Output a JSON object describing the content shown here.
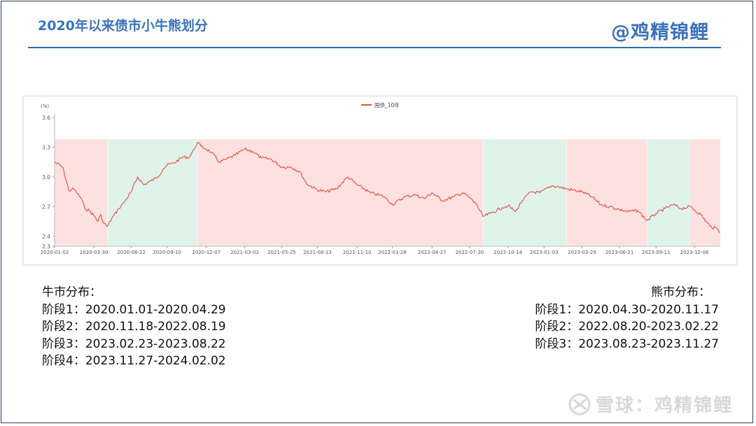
{
  "header": {
    "title": "2020年以来债市小牛熊划分",
    "brand": "@鸡精锦鲤"
  },
  "chart_data": {
    "type": "line",
    "legend": "国债_10年",
    "unit_label": "(%)",
    "y_ticks": [
      "3.6",
      "3.3",
      "3.0",
      "2.7",
      "2.4",
      "2.3"
    ],
    "ylim": [
      2.3,
      3.6
    ],
    "x_range": [
      "2020-01-02",
      "2024-02-02"
    ],
    "x_ticks": [
      "2020-01-02",
      "2020-03-30",
      "2020-06-22",
      "2020-09-10",
      "2020-12-07",
      "2021-03-03",
      "2021-05-25",
      "2021-08-13",
      "2021-11-10",
      "2022-01-28",
      "2022-04-27",
      "2022-07-20",
      "2022-10-14",
      "2023-01-03",
      "2023-03-29",
      "2023-06-21",
      "2023-09-11",
      "2023-12-06"
    ],
    "band_top": 3.38,
    "bands": [
      {
        "start": "2020-01-02",
        "end": "2020-04-29",
        "kind": "bull"
      },
      {
        "start": "2020-04-30",
        "end": "2020-11-17",
        "kind": "bear"
      },
      {
        "start": "2020-11-18",
        "end": "2022-08-19",
        "kind": "bull"
      },
      {
        "start": "2022-08-20",
        "end": "2023-02-22",
        "kind": "bear"
      },
      {
        "start": "2023-02-23",
        "end": "2023-08-22",
        "kind": "bull"
      },
      {
        "start": "2023-08-23",
        "end": "2023-11-27",
        "kind": "bear"
      },
      {
        "start": "2023-11-27",
        "end": "2024-02-02",
        "kind": "bull"
      }
    ],
    "series": [
      {
        "name": "国债_10年",
        "points": [
          [
            "2020-01-02",
            3.15
          ],
          [
            "2020-01-20",
            3.1
          ],
          [
            "2020-02-03",
            2.86
          ],
          [
            "2020-02-14",
            2.88
          ],
          [
            "2020-03-02",
            2.78
          ],
          [
            "2020-03-10",
            2.68
          ],
          [
            "2020-03-20",
            2.66
          ],
          [
            "2020-04-01",
            2.6
          ],
          [
            "2020-04-08",
            2.55
          ],
          [
            "2020-04-15",
            2.62
          ],
          [
            "2020-04-20",
            2.54
          ],
          [
            "2020-04-29",
            2.5
          ],
          [
            "2020-05-12",
            2.6
          ],
          [
            "2020-05-25",
            2.68
          ],
          [
            "2020-06-05",
            2.74
          ],
          [
            "2020-06-22",
            2.85
          ],
          [
            "2020-07-06",
            3.0
          ],
          [
            "2020-07-20",
            2.92
          ],
          [
            "2020-08-05",
            2.96
          ],
          [
            "2020-08-20",
            3.0
          ],
          [
            "2020-09-01",
            3.08
          ],
          [
            "2020-09-10",
            3.12
          ],
          [
            "2020-09-25",
            3.14
          ],
          [
            "2020-10-15",
            3.2
          ],
          [
            "2020-10-30",
            3.2
          ],
          [
            "2020-11-10",
            3.28
          ],
          [
            "2020-11-17",
            3.35
          ],
          [
            "2020-11-25",
            3.31
          ],
          [
            "2020-12-07",
            3.28
          ],
          [
            "2020-12-18",
            3.25
          ],
          [
            "2021-01-05",
            3.15
          ],
          [
            "2021-01-22",
            3.18
          ],
          [
            "2021-02-10",
            3.22
          ],
          [
            "2021-03-03",
            3.28
          ],
          [
            "2021-03-20",
            3.26
          ],
          [
            "2021-04-10",
            3.19
          ],
          [
            "2021-05-01",
            3.18
          ],
          [
            "2021-05-25",
            3.1
          ],
          [
            "2021-06-15",
            3.1
          ],
          [
            "2021-07-05",
            3.05
          ],
          [
            "2021-07-20",
            2.93
          ],
          [
            "2021-08-13",
            2.87
          ],
          [
            "2021-09-01",
            2.85
          ],
          [
            "2021-09-25",
            2.88
          ],
          [
            "2021-10-20",
            3.0
          ],
          [
            "2021-11-10",
            2.92
          ],
          [
            "2021-12-10",
            2.84
          ],
          [
            "2022-01-10",
            2.8
          ],
          [
            "2022-01-28",
            2.72
          ],
          [
            "2022-02-25",
            2.8
          ],
          [
            "2022-03-20",
            2.82
          ],
          [
            "2022-04-10",
            2.78
          ],
          [
            "2022-04-27",
            2.84
          ],
          [
            "2022-05-20",
            2.76
          ],
          [
            "2022-06-15",
            2.8
          ],
          [
            "2022-07-05",
            2.84
          ],
          [
            "2022-07-20",
            2.79
          ],
          [
            "2022-08-05",
            2.72
          ],
          [
            "2022-08-19",
            2.6
          ],
          [
            "2022-09-05",
            2.63
          ],
          [
            "2022-10-01",
            2.69
          ],
          [
            "2022-10-14",
            2.71
          ],
          [
            "2022-10-31",
            2.65
          ],
          [
            "2022-11-15",
            2.76
          ],
          [
            "2022-12-05",
            2.85
          ],
          [
            "2022-12-25",
            2.84
          ],
          [
            "2023-01-20",
            2.91
          ],
          [
            "2023-02-05",
            2.9
          ],
          [
            "2023-02-22",
            2.88
          ],
          [
            "2023-03-15",
            2.86
          ],
          [
            "2023-03-29",
            2.85
          ],
          [
            "2023-04-20",
            2.8
          ],
          [
            "2023-05-10",
            2.72
          ],
          [
            "2023-05-30",
            2.7
          ],
          [
            "2023-06-21",
            2.67
          ],
          [
            "2023-07-10",
            2.65
          ],
          [
            "2023-08-01",
            2.66
          ],
          [
            "2023-08-22",
            2.56
          ],
          [
            "2023-09-11",
            2.63
          ],
          [
            "2023-10-01",
            2.68
          ],
          [
            "2023-10-20",
            2.72
          ],
          [
            "2023-11-05",
            2.68
          ],
          [
            "2023-11-27",
            2.7
          ],
          [
            "2023-12-20",
            2.62
          ],
          [
            "2024-01-10",
            2.5
          ],
          [
            "2024-01-25",
            2.48
          ],
          [
            "2024-02-02",
            2.44
          ]
        ]
      }
    ]
  },
  "bull": {
    "heading": "牛市分布：",
    "items": [
      "阶段1：2020.01.01-2020.04.29",
      "阶段2：2020.11.18-2022.08.19",
      "阶段3：2023.02.23-2023.08.22",
      "阶段4：2023.11.27-2024.02.02"
    ]
  },
  "bear": {
    "heading": "熊市分布：",
    "items": [
      "阶段1：2020.04.30-2020.11.17",
      "阶段2：2022.08.20-2023.02.22",
      "阶段3：2023.08.23-2023.11.27"
    ]
  },
  "watermark": {
    "text": "雪球：鸡精锦鲤",
    "icon": "xueqiu-logo-icon"
  },
  "colors": {
    "accent": "#3b73b9",
    "bull_band": "#fde0e0",
    "bear_band": "#e0f3ea",
    "line": "#d9523f"
  }
}
